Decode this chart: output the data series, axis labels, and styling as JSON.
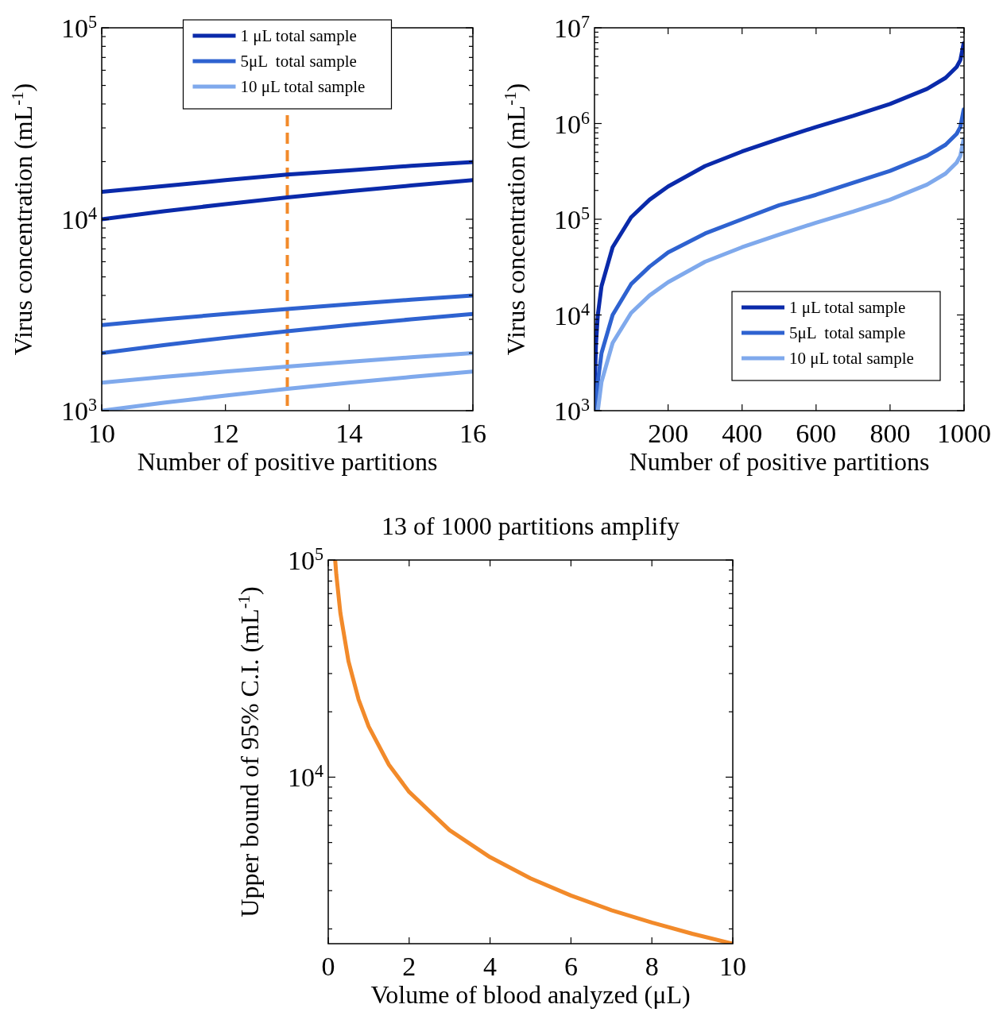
{
  "chart_data": [
    {
      "type": "line",
      "xlabel": "Number of positive partitions",
      "ylabel": "Virus concentration (mL$^{-1}$)",
      "log": "y",
      "legend": "top",
      "x": [
        10,
        11,
        12,
        13,
        14,
        15,
        16
      ],
      "xlim": [
        10,
        16
      ],
      "xticks": [
        10,
        12,
        14,
        16
      ],
      "ylim": [
        1000,
        100000
      ],
      "yticks": [
        {
          "value": 1000,
          "label": "10$^{3}$"
        },
        {
          "value": 2000,
          "label": null
        },
        {
          "value": 3000,
          "label": null
        },
        {
          "value": 4000,
          "label": null
        },
        {
          "value": 5000,
          "label": null
        },
        {
          "value": 6000,
          "label": null
        },
        {
          "value": 7000,
          "label": null
        },
        {
          "value": 8000,
          "label": null
        },
        {
          "value": 9000,
          "label": null
        },
        {
          "value": 10000,
          "label": "10$^{4}$"
        },
        {
          "value": 20000,
          "label": null
        },
        {
          "value": 30000,
          "label": null
        },
        {
          "value": 40000,
          "label": null
        },
        {
          "value": 50000,
          "label": null
        },
        {
          "value": 60000,
          "label": null
        },
        {
          "value": 70000,
          "label": null
        },
        {
          "value": 80000,
          "label": null
        },
        {
          "value": 90000,
          "label": null
        },
        {
          "value": 100000,
          "label": "10$^{5}$"
        }
      ],
      "series": [
        {
          "name": "1 μL total sample",
          "color": "#0a2aaa",
          "values": [
            13900,
            14900,
            16000,
            17100,
            18000,
            19000,
            19900
          ]
        },
        {
          "color": "#0a2aaa",
          "values": [
            10000,
            11000,
            12000,
            13000,
            14000,
            15000,
            16000
          ]
        },
        {
          "name": "5μL  total sample",
          "color": "#2e62d0",
          "values": [
            2800,
            3000,
            3200,
            3400,
            3600,
            3800,
            4000
          ]
        },
        {
          "color": "#2e62d0",
          "values": [
            2000,
            2200,
            2400,
            2600,
            2800,
            3000,
            3200
          ]
        },
        {
          "name": "10 μL total sample",
          "color": "#7fa9ec",
          "values": [
            1400,
            1500,
            1600,
            1700,
            1800,
            1900,
            2000
          ]
        },
        {
          "color": "#7fa9ec",
          "values": [
            1000,
            1100,
            1200,
            1300,
            1400,
            1500,
            1600
          ]
        }
      ],
      "ref_lines": [
        {
          "axis": "x",
          "value": 13,
          "color": "#f28a2a",
          "line_style": "dashed"
        }
      ]
    },
    {
      "type": "line",
      "xlabel": "Number of positive partitions",
      "ylabel": "Virus concentration (mL$^{-1}$)",
      "log": "y",
      "legend": "bottom right",
      "xlim": [
        1,
        1000
      ],
      "xticks": [
        200,
        400,
        600,
        800,
        1000
      ],
      "ylim": [
        1000,
        10000000
      ],
      "yticks": [
        {
          "value": 1000,
          "label": "10$^{3}$"
        },
        {
          "value": 2000,
          "label": null
        },
        {
          "value": 3000,
          "label": null
        },
        {
          "value": 4000,
          "label": null
        },
        {
          "value": 5000,
          "label": null
        },
        {
          "value": 6000,
          "label": null
        },
        {
          "value": 7000,
          "label": null
        },
        {
          "value": 8000,
          "label": null
        },
        {
          "value": 9000,
          "label": null
        },
        {
          "value": 10000,
          "label": "10$^{4}$"
        },
        {
          "value": 20000,
          "label": null
        },
        {
          "value": 30000,
          "label": null
        },
        {
          "value": 40000,
          "label": null
        },
        {
          "value": 50000,
          "label": null
        },
        {
          "value": 60000,
          "label": null
        },
        {
          "value": 70000,
          "label": null
        },
        {
          "value": 80000,
          "label": null
        },
        {
          "value": 90000,
          "label": null
        },
        {
          "value": 100000,
          "label": "10$^{5}$"
        },
        {
          "value": 200000,
          "label": null
        },
        {
          "value": 300000,
          "label": null
        },
        {
          "value": 400000,
          "label": null
        },
        {
          "value": 500000,
          "label": null
        },
        {
          "value": 600000,
          "label": null
        },
        {
          "value": 700000,
          "label": null
        },
        {
          "value": 800000,
          "label": null
        },
        {
          "value": 900000,
          "label": null
        },
        {
          "value": 1000000,
          "label": "10$^{6}$"
        },
        {
          "value": 2000000,
          "label": null
        },
        {
          "value": 3000000,
          "label": null
        },
        {
          "value": 4000000,
          "label": null
        },
        {
          "value": 5000000,
          "label": null
        },
        {
          "value": 6000000,
          "label": null
        },
        {
          "value": 7000000,
          "label": null
        },
        {
          "value": 8000000,
          "label": null
        },
        {
          "value": 9000000,
          "label": null
        },
        {
          "value": 10000000,
          "label": "10$^{7}$"
        }
      ],
      "series": [
        {
          "name": "1 μL total sample",
          "color": "#0a2aaa",
          "x": [
            1,
            2,
            5,
            10,
            20,
            50,
            100,
            150,
            200,
            300,
            400,
            500,
            600,
            700,
            800,
            900,
            950,
            980,
            990,
            999
          ],
          "values": [
            1000,
            2000,
            5000,
            10000,
            20000,
            51000,
            105000,
            160000,
            220000,
            360000,
            510000,
            690000,
            920000,
            1200000,
            1600000,
            2300000,
            3000000,
            3900000,
            4600000,
            6900000
          ]
        },
        {
          "name": "5μL  total sample",
          "color": "#2e62d0",
          "x": [
            5,
            10,
            20,
            50,
            100,
            150,
            200,
            300,
            400,
            500,
            600,
            700,
            800,
            900,
            950,
            980,
            990,
            999
          ],
          "values": [
            1000,
            2000,
            4000,
            10000,
            21000,
            32000,
            45000,
            71000,
            100000,
            140000,
            180000,
            240000,
            320000,
            460000,
            600000,
            780000,
            920000,
            1400000
          ]
        },
        {
          "name": "10 μL total sample",
          "color": "#7fa9ec",
          "x": [
            10,
            20,
            50,
            100,
            150,
            200,
            300,
            400,
            500,
            600,
            700,
            800,
            900,
            950,
            980,
            990,
            999
          ],
          "values": [
            1000,
            2000,
            5100,
            10500,
            16000,
            22000,
            36000,
            51000,
            69000,
            92000,
            120000,
            160000,
            230000,
            300000,
            390000,
            460000,
            690000
          ]
        }
      ]
    },
    {
      "type": "line",
      "title": "13 of 1000 partitions amplify",
      "xlabel": "Volume of blood analyzed (μL)",
      "ylabel": "Upper bound of 95% C.I. (mL$^{-1}$)",
      "log": "y",
      "x": [
        0.171,
        0.2,
        0.3,
        0.5,
        0.75,
        1,
        1.5,
        2,
        3,
        4,
        5,
        6,
        7,
        8,
        9,
        10
      ],
      "xlim": [
        0,
        10
      ],
      "xticks": [
        0,
        2,
        4,
        6,
        8,
        10
      ],
      "ylim": [
        1710,
        100000
      ],
      "yticks": [
        {
          "value": 2000,
          "label": null
        },
        {
          "value": 3000,
          "label": null
        },
        {
          "value": 4000,
          "label": null
        },
        {
          "value": 5000,
          "label": null
        },
        {
          "value": 6000,
          "label": null
        },
        {
          "value": 7000,
          "label": null
        },
        {
          "value": 8000,
          "label": null
        },
        {
          "value": 9000,
          "label": null
        },
        {
          "value": 10000,
          "label": "10$^{4}$"
        },
        {
          "value": 20000,
          "label": null
        },
        {
          "value": 30000,
          "label": null
        },
        {
          "value": 40000,
          "label": null
        },
        {
          "value": 50000,
          "label": null
        },
        {
          "value": 60000,
          "label": null
        },
        {
          "value": 70000,
          "label": null
        },
        {
          "value": 80000,
          "label": null
        },
        {
          "value": 90000,
          "label": null
        },
        {
          "value": 100000,
          "label": "10$^{5}$"
        }
      ],
      "series": [
        {
          "color": "#f28a2a",
          "values": [
            100000,
            85500,
            57000,
            34200,
            22800,
            17100,
            11400,
            8550,
            5700,
            4280,
            3420,
            2850,
            2440,
            2140,
            1900,
            1710
          ]
        }
      ]
    }
  ]
}
